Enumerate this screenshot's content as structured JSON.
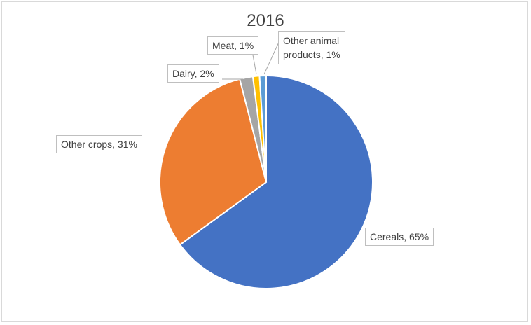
{
  "chart_data": {
    "type": "pie",
    "title": "2016",
    "slices": [
      {
        "name": "Cereals",
        "value": 65,
        "label": "Cereals, 65%",
        "color": "#4472c4"
      },
      {
        "name": "Other crops",
        "value": 31,
        "label": "Other crops, 31%",
        "color": "#ed7d31"
      },
      {
        "name": "Dairy",
        "value": 2,
        "label": "Dairy, 2%",
        "color": "#a5a5a5"
      },
      {
        "name": "Meat",
        "value": 1,
        "label": "Meat, 1%",
        "color": "#ffc000"
      },
      {
        "name": "Other animal products",
        "value": 1,
        "label_line1": "Other animal",
        "label_line2": "products, 1%",
        "color": "#5b9bd5"
      }
    ]
  }
}
